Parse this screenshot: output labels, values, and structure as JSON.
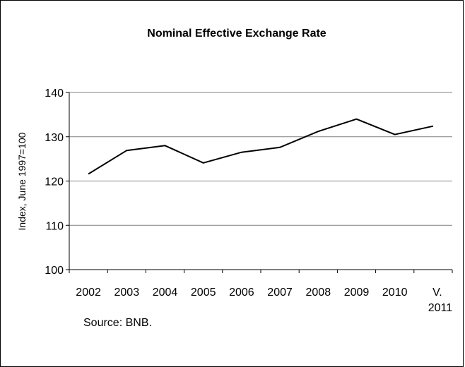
{
  "chart_data": {
    "type": "line",
    "title": "Nominal Effective Exchange Rate",
    "ylabel": "Index, June 1997=100",
    "xlabel": "",
    "categories": [
      "2002",
      "2003",
      "2004",
      "2005",
      "2006",
      "2007",
      "2008",
      "2009",
      "2010",
      "V. 2011"
    ],
    "category_lines": [
      [
        "2002"
      ],
      [
        "2003"
      ],
      [
        "2004"
      ],
      [
        "2005"
      ],
      [
        "2006"
      ],
      [
        "2007"
      ],
      [
        "2008"
      ],
      [
        "2009"
      ],
      [
        "2010"
      ],
      [
        "V.",
        "2011"
      ]
    ],
    "values": [
      121.6,
      126.9,
      128.0,
      124.1,
      126.5,
      127.6,
      131.2,
      134.0,
      130.5,
      132.4
    ],
    "ylim": [
      100,
      140
    ],
    "yticks": [
      100,
      110,
      120,
      130,
      140
    ],
    "grid": true,
    "line_color": "#000000",
    "grid_color": "#808080",
    "source": "Source: BNB."
  }
}
